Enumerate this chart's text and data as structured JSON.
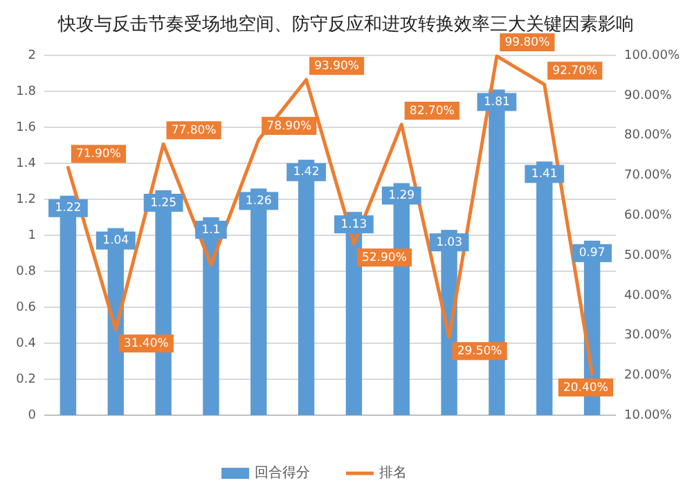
{
  "chart_data": {
    "type": "bar",
    "title": "快攻与反击节奏受场地空间、防守反应和进攻转换效率三大关键因素影响",
    "categories": [
      null,
      null,
      null,
      null,
      null,
      null,
      null,
      null,
      null,
      null,
      null,
      null
    ],
    "series": [
      {
        "name": "回合得分",
        "color": "#5b9bd5",
        "values": [
          1.22,
          1.04,
          1.25,
          1.1,
          1.26,
          1.42,
          1.13,
          1.29,
          1.03,
          1.81,
          1.41,
          0.97
        ],
        "value_labels": [
          "1.22",
          "1.04",
          "1.25",
          "1.1",
          "1.26",
          "1.42",
          "1.13",
          "1.29",
          "1.03",
          "1.81",
          "1.41",
          "0.97"
        ]
      },
      {
        "name": "排名",
        "type": "line",
        "axis": "y2",
        "color": "#ed7d31",
        "values": [
          71.9,
          31.4,
          77.8,
          47.6,
          78.9,
          93.9,
          52.9,
          82.7,
          29.5,
          99.8,
          92.7,
          20.4
        ],
        "value_labels": [
          "71.90%",
          "31.40%",
          "77.80%",
          null,
          "78.90%",
          "93.90%",
          "52.90%",
          "82.70%",
          "29.50%",
          "99.80%",
          "92.70%",
          "20.40%"
        ]
      }
    ],
    "ylim": [
      0,
      2
    ],
    "yticks": [
      0,
      0.2,
      0.4,
      0.6,
      0.8,
      1,
      1.2,
      1.4,
      1.6,
      1.8,
      2
    ],
    "y2lim": [
      10,
      100
    ],
    "y2ticks": [
      {
        "value": 10,
        "label": "10.00%"
      },
      {
        "value": 20,
        "label": "20.00%"
      },
      {
        "value": 30,
        "label": "30.00%"
      },
      {
        "value": 40,
        "label": "40.00%"
      },
      {
        "value": 50,
        "label": "50.00%"
      },
      {
        "value": 60,
        "label": "60.00%"
      },
      {
        "value": 70,
        "label": "70.00%"
      },
      {
        "value": 80,
        "label": "80.00%"
      },
      {
        "value": 90,
        "label": "90.00%"
      },
      {
        "value": 100,
        "label": "100.00%"
      }
    ],
    "grid": "y",
    "legend": "bottom"
  }
}
